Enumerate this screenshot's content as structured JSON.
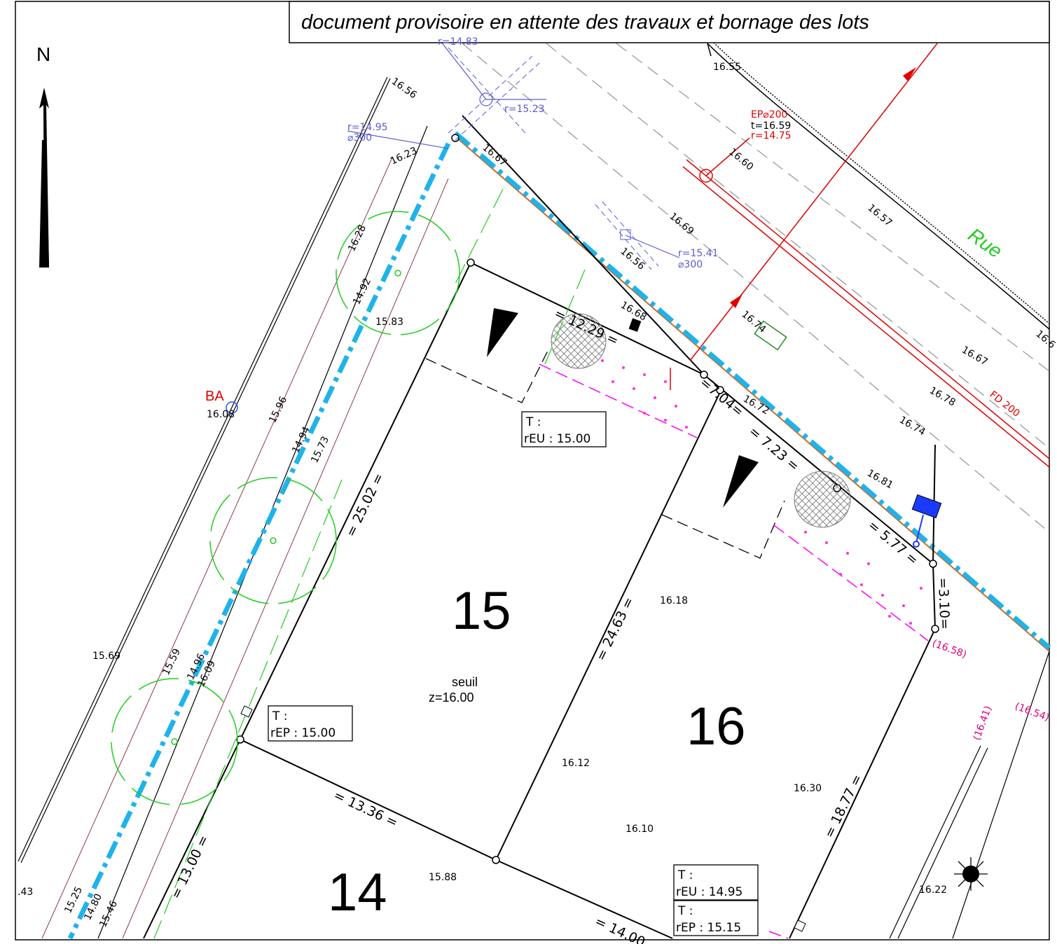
{
  "banner": "document provisoire en attente des travaux et bornage des lots",
  "north": "N",
  "street_name": "Rue",
  "lots": {
    "lot_15": "15",
    "lot_16": "16",
    "lot_14": "14"
  },
  "seuil": {
    "label": "seuil",
    "value": "z=16.00"
  },
  "dimensions": {
    "d_25_02": "= 25.02 =",
    "d_24_63": "= 24.63 =",
    "d_13_36": "= 13.36 =",
    "d_13_00": "= 13.00 =",
    "d_18_77": "= 18.77 =",
    "d_14_00": "= 14.00",
    "d_12_29": "= 12.29 =",
    "d_7_04": "=7.04=",
    "d_7_23": "= 7.23 =",
    "d_5_77": "= 5.77 =",
    "d_3_10": "=3.10="
  },
  "boxes": {
    "reu_15": {
      "t": "T   :",
      "r": "rEU  : 15.00"
    },
    "rep_15": {
      "t": "T   :",
      "r": "rEP  : 15.00"
    },
    "reu_1495": {
      "t": "T   :",
      "r": "rEU  : 14.95"
    },
    "rep_1515": {
      "t": "T   :",
      "r": "rEP  : 15.15"
    }
  },
  "network": {
    "ep_label": "EP⌀200",
    "ep_t": "t=16.59",
    "ep_r": "r=14.75",
    "fd": "FD 200",
    "r1523": "r=15.23",
    "r1541": "r=15.41",
    "d300a": "⌀300",
    "r1495": "r=14.95",
    "d300b": "⌀300",
    "r_top": "r=14.83",
    "ba": "BA"
  },
  "projected_levels": {
    "p1658": "(16.58)",
    "p1641": "(16.41)",
    "p1654": "(16.54)"
  },
  "spot_heights": {
    "h1655": "16.55",
    "h1656a": "16.56",
    "h1623": "16.23",
    "h1667a": "16.67",
    "h1660": "16.60",
    "h1657": "16.57",
    "h1669": "16.69",
    "h1656b": "16.56",
    "h1628": "16.28",
    "h1492": "14.92",
    "h1583": "15.83",
    "h1668": "16.68",
    "h1674a": "16.74",
    "h1667b": "16.67",
    "h1672": "16.72",
    "h1678": "16.78",
    "h1674b": "16.74",
    "h1681": "16.81",
    "h1608": "16.08",
    "h1596": "15.96",
    "h1494": "14.94",
    "h1573": "15.73",
    "h1618": "16.18",
    "h1569": "15.69",
    "h1559": "15.59",
    "h1496": "14.96",
    "h1609": "16.09",
    "h1612": "16.12",
    "h1630": "16.30",
    "h1610": "16.10",
    "h1588": "15.88",
    "h1622": "16.22",
    "h1525": "15.25",
    "h1480": "14.80",
    "h1546": "15.46",
    "h43": ".43",
    "h16c": "16.6"
  },
  "colors": {
    "boundary_blue": "#1fb3ea",
    "tree_green": "#22cc22",
    "network_red": "#e00000",
    "network_violet": "#5a5ad6",
    "pink": "#e0007a"
  }
}
